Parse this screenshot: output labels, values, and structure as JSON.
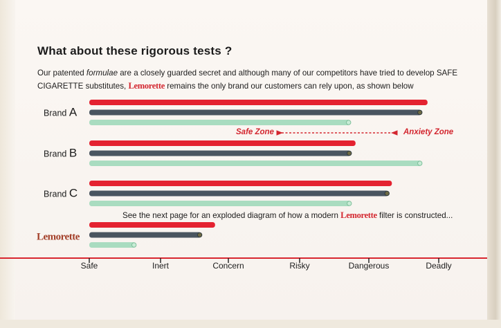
{
  "heading": "What about these rigorous tests ?",
  "intro": {
    "part1": "Our patented ",
    "formulae": "formulae",
    "part2": " are a closely guarded secret and although many of our competitors have tried to develop SAFE CIGARETTE substitutes, ",
    "brand": "Lemorette",
    "part3": " remains the only brand our customers can rely upon, as shown below"
  },
  "zones": {
    "safe": "Safe Zone",
    "anxiety": "Anxiety Zone"
  },
  "note": {
    "part1": "See the next page for an exploded diagram of how a modern ",
    "brand": "Lemorette",
    "part2": " filter is constructed..."
  },
  "colors": {
    "red": "#e42230",
    "slate": "#4a5560",
    "mint": "#a9dcc0",
    "axis": "#d8262f"
  },
  "chart_data": {
    "type": "bar",
    "orientation": "horizontal",
    "xcategories": [
      "Safe",
      "Inert",
      "Concern",
      "Risky",
      "Dangerous",
      "Deadly"
    ],
    "xlim": [
      0,
      5
    ],
    "groups": [
      {
        "label": "Brand A",
        "label_prefix": "Brand",
        "label_letter": "A",
        "values": [
          {
            "color": "red",
            "value": 4.84
          },
          {
            "color": "slate",
            "value": 4.75
          },
          {
            "color": "mint",
            "value": 3.73
          }
        ]
      },
      {
        "label": "Brand B",
        "label_prefix": "Brand",
        "label_letter": "B",
        "values": [
          {
            "color": "red",
            "value": 3.81
          },
          {
            "color": "slate",
            "value": 3.74
          },
          {
            "color": "mint",
            "value": 4.75
          }
        ]
      },
      {
        "label": "Brand C",
        "label_prefix": "Brand",
        "label_letter": "C",
        "values": [
          {
            "color": "red",
            "value": 4.33
          },
          {
            "color": "slate",
            "value": 4.28
          },
          {
            "color": "mint",
            "value": 3.74
          }
        ]
      },
      {
        "label": "Lemorette",
        "label_prefix": "",
        "label_letter": "",
        "logo": true,
        "values": [
          {
            "color": "red",
            "value": 1.8
          },
          {
            "color": "slate",
            "value": 1.6
          },
          {
            "color": "mint",
            "value": 0.66
          }
        ]
      }
    ]
  }
}
